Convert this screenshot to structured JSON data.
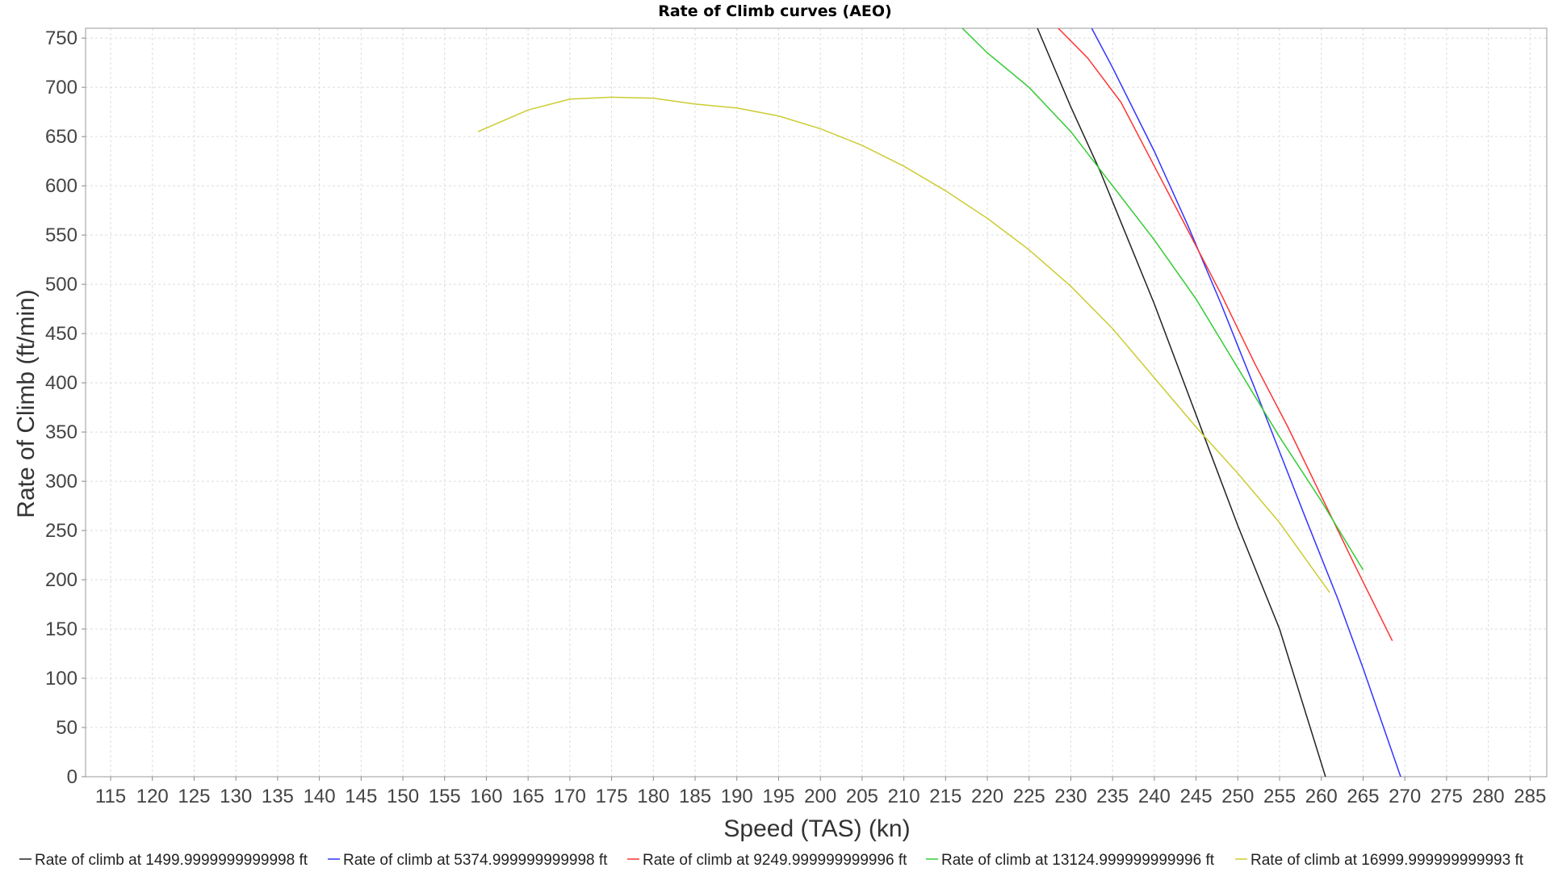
{
  "chart_data": {
    "type": "line",
    "title": "Rate of Climb curves (AEO)",
    "xlabel": "Speed (TAS) (kn)",
    "ylabel": "Rate of Climb (ft/min)",
    "xlim": [
      112,
      287
    ],
    "ylim": [
      0,
      760
    ],
    "xticks": [
      115,
      120,
      125,
      130,
      135,
      140,
      145,
      150,
      155,
      160,
      165,
      170,
      175,
      180,
      185,
      190,
      195,
      200,
      205,
      210,
      215,
      220,
      225,
      230,
      235,
      240,
      245,
      250,
      255,
      260,
      265,
      270,
      275,
      280,
      285
    ],
    "yticks": [
      0,
      50,
      100,
      150,
      200,
      250,
      300,
      350,
      400,
      450,
      500,
      550,
      600,
      650,
      700,
      750
    ],
    "grid": true,
    "legend_position": "bottom",
    "series": [
      {
        "name": "Rate of climb at 1499.9999999999998 ft",
        "color": "#222222",
        "x": [
          226,
          230,
          233.5,
          240,
          246,
          250,
          255,
          260.5
        ],
        "y": [
          760,
          680,
          615,
          480,
          345,
          255,
          150,
          0
        ]
      },
      {
        "name": "Rate of climb at 5374.999999999998 ft",
        "color": "#3333ff",
        "x": [
          232.5,
          235,
          240,
          244,
          248,
          252,
          255,
          258,
          262,
          265,
          269.5
        ],
        "y": [
          760,
          720,
          635,
          560,
          480,
          395,
          330,
          265,
          180,
          110,
          0
        ]
      },
      {
        "name": "Rate of climb at 9249.999999999996 ft",
        "color": "#ff3333",
        "x": [
          228.5,
          232,
          236,
          240,
          244,
          248,
          252,
          256,
          260,
          264,
          268.5
        ],
        "y": [
          760,
          730,
          685,
          620,
          555,
          490,
          420,
          355,
          285,
          215,
          138
        ]
      },
      {
        "name": "Rate of climb at 13124.999999999996 ft",
        "color": "#33cc33",
        "x": [
          217,
          220,
          225,
          230,
          235,
          240,
          245,
          250,
          255,
          260,
          265
        ],
        "y": [
          760,
          735,
          700,
          655,
          600,
          545,
          485,
          415,
          345,
          280,
          210
        ]
      },
      {
        "name": "Rate of climb at 16999.999999999993 ft",
        "color": "#cccc33",
        "x": [
          159,
          165,
          170,
          175,
          180,
          185,
          190,
          195,
          200,
          205,
          210,
          215,
          220,
          225,
          230,
          235,
          240,
          245,
          250,
          255,
          261
        ],
        "y": [
          655,
          677,
          688,
          690,
          689,
          683,
          679,
          671,
          658,
          641,
          620,
          595,
          567,
          535,
          498,
          455,
          405,
          355,
          308,
          258,
          187
        ]
      }
    ]
  }
}
